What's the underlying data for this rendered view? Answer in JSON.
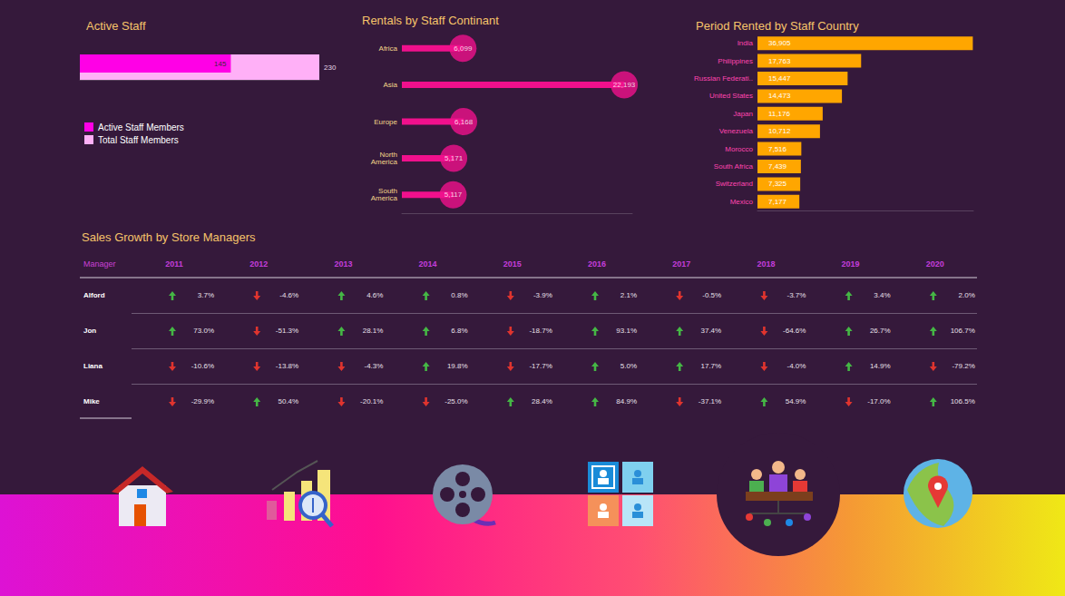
{
  "chart_data": [
    {
      "type": "bar",
      "title": "Active Staff",
      "orientation": "horizontal",
      "series": [
        {
          "name": "Active Staff Members",
          "color": "#ff00e6",
          "values": [
            145
          ]
        },
        {
          "name": "Total Staff Members",
          "color": "#ffb0f7",
          "values": [
            230
          ]
        }
      ],
      "xlim": [
        0,
        230
      ],
      "data_labels": true,
      "tick_labels": false,
      "legend": "bottom left"
    },
    {
      "type": "lollipop",
      "title": "Rentals by Staff Continant",
      "orientation": "horizontal",
      "categories": [
        "Africa",
        "Asia",
        "Europe",
        "North America",
        "South America"
      ],
      "values": [
        6099,
        22193,
        6168,
        5171,
        5117
      ],
      "value_labels": [
        "6,099",
        "22,193",
        "6,168",
        "5,171",
        "5,117"
      ],
      "color": "#f0108c",
      "marker": "circle",
      "xlim": [
        0,
        23000
      ],
      "data_labels": true,
      "tick_labels": "y"
    },
    {
      "type": "bar",
      "title": "Period Rented by Staff Country",
      "orientation": "horizontal",
      "categories": [
        "India",
        "Philippines",
        "Russian Federati..",
        "United States",
        "Japan",
        "Venezuela",
        "Morocco",
        "South Africa",
        "Switzerland",
        "Mexico"
      ],
      "values": [
        36905,
        17763,
        15447,
        14473,
        11176,
        10712,
        7516,
        7439,
        7325,
        7177
      ],
      "value_labels": [
        "36,905",
        "17,763",
        "15,447",
        "14,473",
        "11,176",
        "10,712",
        "7,516",
        "7,439",
        "7,325",
        "7,177"
      ],
      "color": "#ffa600",
      "xlim": [
        0,
        37000
      ],
      "data_labels": true,
      "tick_labels": "y"
    }
  ],
  "table": {
    "title": "Sales Growth by Store Managers",
    "header": [
      "Manager",
      "2011",
      "2012",
      "2013",
      "2014",
      "2015",
      "2016",
      "2017",
      "2018",
      "2019",
      "2020"
    ],
    "rows": [
      [
        "Alford",
        "3.7%",
        "-4.6%",
        "4.6%",
        "0.8%",
        "-3.9%",
        "2.1%",
        "-0.5%",
        "-3.7%",
        "3.4%",
        "2.0%"
      ],
      [
        "Jon",
        "73.0%",
        "-51.3%",
        "28.1%",
        "6.8%",
        "-18.7%",
        "93.1%",
        "37.4%",
        "-64.6%",
        "26.7%",
        "106.7%"
      ],
      [
        "Liana",
        "-10.6%",
        "-13.8%",
        "-4.3%",
        "19.8%",
        "-17.7%",
        "5.0%",
        "17.7%",
        "-4.0%",
        "14.9%",
        "-79.2%"
      ],
      [
        "Mike",
        "-29.9%",
        "50.4%",
        "-20.1%",
        "-25.0%",
        "28.4%",
        "84.9%",
        "-37.1%",
        "54.9%",
        "-17.0%",
        "106.5%"
      ]
    ]
  }
}
